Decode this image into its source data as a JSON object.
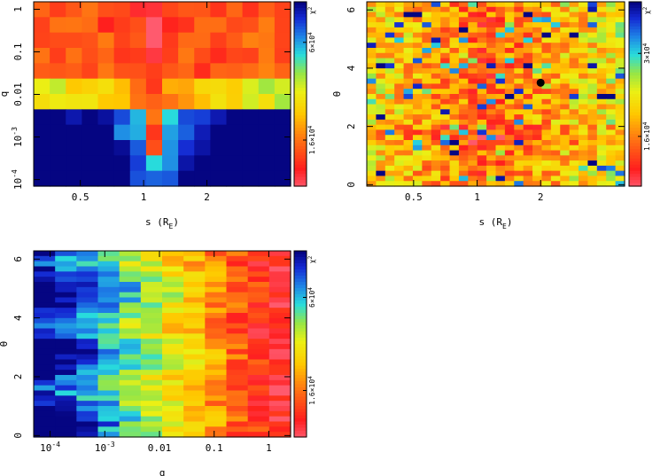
{
  "chart_data": [
    {
      "type": "heatmap",
      "name": "panel-q-vs-s",
      "xlabel": "s (R",
      "xlabel_sub": "E",
      "xlabel_tail": ")",
      "ylabel": "q",
      "x_scale": "log",
      "y_scale": "log",
      "xlim": [
        0.3,
        5.0
      ],
      "ylim": [
        7e-05,
        1.5
      ],
      "x_ticks": [
        {
          "v": 0.5,
          "label": "0.5"
        },
        {
          "v": 1,
          "label": "1"
        },
        {
          "v": 2,
          "label": "2"
        }
      ],
      "y_ticks": [
        {
          "v": 1,
          "base": "1",
          "exp": ""
        },
        {
          "v": 0.1,
          "base": "0.1",
          "exp": ""
        },
        {
          "v": 0.01,
          "base": "0.01",
          "exp": ""
        },
        {
          "v": 0.001,
          "base": "10",
          "exp": "-3"
        },
        {
          "v": 0.0001,
          "base": "10",
          "exp": "-4"
        }
      ],
      "nx": 16,
      "ny": 12,
      "colorbar": {
        "title": "χ",
        "title_exp": "2",
        "ticks": [
          {
            "v": 0.25,
            "label": "1.6×10"
          },
          {
            "v": 0.78,
            "label": "6×10"
          }
        ],
        "tick_exp": "4"
      }
    },
    {
      "type": "heatmap",
      "name": "panel-theta-vs-s",
      "xlabel": "s (R",
      "xlabel_sub": "E",
      "xlabel_tail": ")",
      "ylabel": "θ",
      "x_scale": "log",
      "y_scale": "linear",
      "xlim": [
        0.3,
        5.0
      ],
      "ylim": [
        -0.05,
        6.28
      ],
      "x_ticks": [
        {
          "v": 0.5,
          "label": "0.5"
        },
        {
          "v": 1,
          "label": "1"
        },
        {
          "v": 2,
          "label": "2"
        }
      ],
      "y_ticks": [
        {
          "v": 0,
          "label": "0"
        },
        {
          "v": 2,
          "label": "2"
        },
        {
          "v": 4,
          "label": "4"
        },
        {
          "v": 6,
          "label": "6"
        }
      ],
      "nx": 28,
      "ny": 36,
      "marker": {
        "x": 2.0,
        "y": 3.5
      },
      "colorbar": {
        "title": "χ",
        "title_exp": "2",
        "ticks": [
          {
            "v": 0.27,
            "label": "1.6×10"
          },
          {
            "v": 0.72,
            "label": "3×10"
          }
        ],
        "tick_exp": "4"
      }
    },
    {
      "type": "heatmap",
      "name": "panel-theta-vs-q",
      "xlabel": "q",
      "ylabel": "θ",
      "x_scale": "log",
      "y_scale": "linear",
      "xlim": [
        5e-05,
        2.5
      ],
      "ylim": [
        -0.05,
        6.28
      ],
      "x_ticks": [
        {
          "v": 0.0001,
          "base": "10",
          "exp": "-4"
        },
        {
          "v": 0.001,
          "base": "10",
          "exp": "-3"
        },
        {
          "v": 0.01,
          "base": "0.01",
          "exp": ""
        },
        {
          "v": 0.1,
          "base": "0.1",
          "exp": ""
        },
        {
          "v": 1,
          "base": "1",
          "exp": ""
        }
      ],
      "y_ticks": [
        {
          "v": 0,
          "label": "0"
        },
        {
          "v": 2,
          "label": "2"
        },
        {
          "v": 4,
          "label": "4"
        },
        {
          "v": 6,
          "label": "6"
        }
      ],
      "nx": 12,
      "ny": 36,
      "colorbar": {
        "title": "χ",
        "title_exp": "2",
        "ticks": [
          {
            "v": 0.25,
            "label": "1.6×10"
          },
          {
            "v": 0.75,
            "label": "6×10"
          }
        ],
        "tick_exp": "4"
      }
    }
  ]
}
